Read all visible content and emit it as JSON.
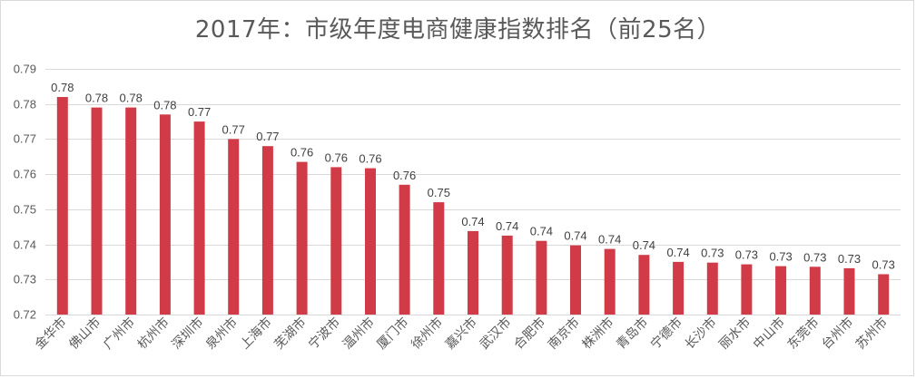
{
  "chart_data": {
    "type": "bar",
    "title": "2017年：市级年度电商健康指数排名（前25名）",
    "categories": [
      "金华市",
      "佛山市",
      "广州市",
      "杭州市",
      "深圳市",
      "泉州市",
      "上海市",
      "芜湖市",
      "宁波市",
      "温州市",
      "厦门市",
      "徐州市",
      "嘉兴市",
      "武汉市",
      "合肥市",
      "南京市",
      "株洲市",
      "青岛市",
      "宁德市",
      "长沙市",
      "丽水市",
      "中山市",
      "东莞市",
      "台州市",
      "苏州市"
    ],
    "values": [
      0.782,
      0.779,
      0.779,
      0.777,
      0.775,
      0.77,
      0.768,
      0.7635,
      0.762,
      0.7617,
      0.757,
      0.752,
      0.7438,
      0.7425,
      0.741,
      0.7397,
      0.7387,
      0.737,
      0.735,
      0.7348,
      0.7343,
      0.7338,
      0.7336,
      0.7332,
      0.7315
    ],
    "data_labels": [
      "0.78",
      "0.78",
      "0.78",
      "0.78",
      "0.77",
      "0.77",
      "0.77",
      "0.76",
      "0.76",
      "0.76",
      "0.76",
      "0.75",
      "0.74",
      "0.74",
      "0.74",
      "0.74",
      "0.74",
      "0.74",
      "0.74",
      "0.73",
      "0.73",
      "0.73",
      "0.73",
      "0.73",
      "0.73"
    ],
    "y_ticks": [
      0.72,
      0.73,
      0.74,
      0.75,
      0.76,
      0.77,
      0.78,
      0.79
    ],
    "y_tick_labels": [
      "0.72",
      "0.73",
      "0.74",
      "0.75",
      "0.76",
      "0.77",
      "0.78",
      "0.79"
    ],
    "ylim": [
      0.72,
      0.79
    ],
    "xlabel": "",
    "ylabel": "",
    "grid": true,
    "legend": "none",
    "bar_color": "#d13b47",
    "grid_color": "#d9d9d9"
  }
}
